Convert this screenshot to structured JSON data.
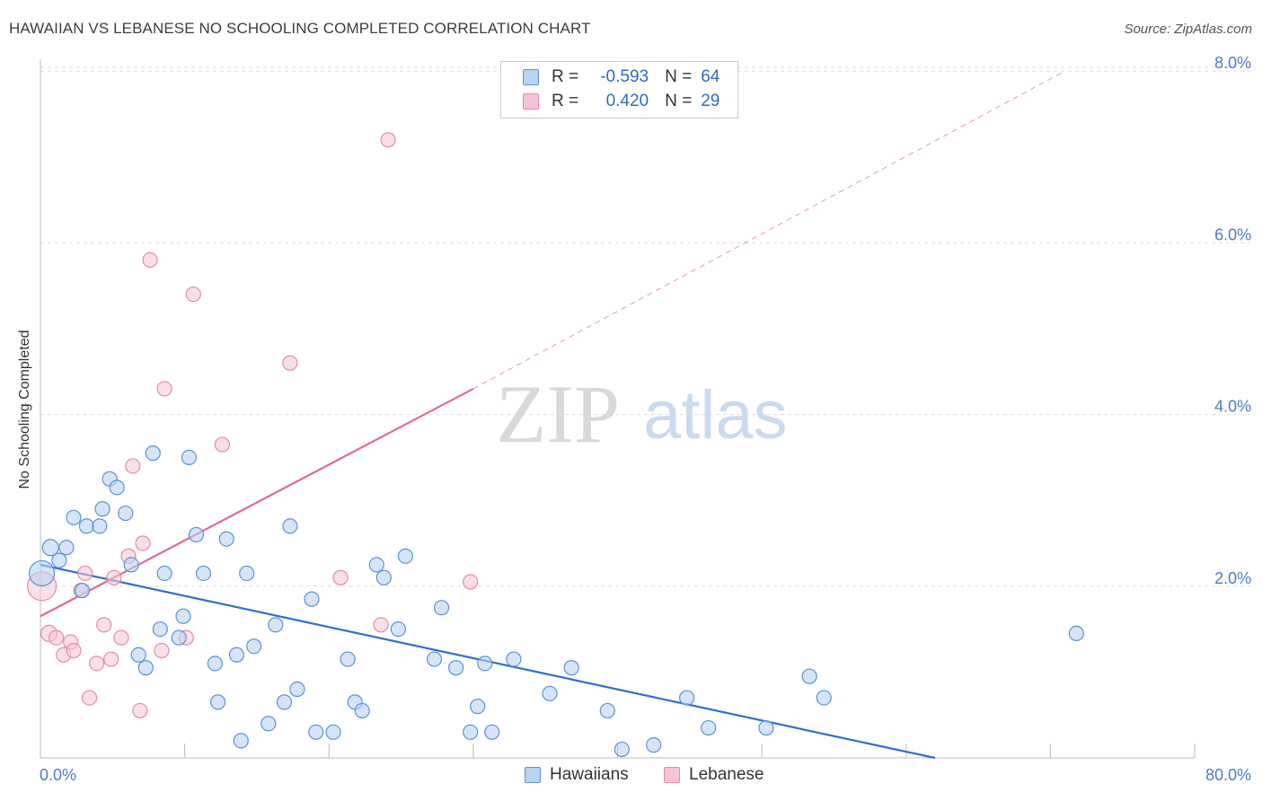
{
  "title": "HAWAIIAN VS LEBANESE NO SCHOOLING COMPLETED CORRELATION CHART",
  "source": "Source: ZipAtlas.com",
  "watermark": {
    "zip": "ZIP",
    "atlas": "atlas"
  },
  "colors": {
    "blue_fill": "#b9d3f2",
    "blue_stroke": "#5b92d6",
    "blue_line": "#2e6fcf",
    "pink_fill": "#f7c4d4",
    "pink_stroke": "#e58aa8",
    "pink_line": "#e06a93",
    "grid": "#dddddd",
    "tick_text": "#4a7cc7"
  },
  "legend": {
    "rows": [
      {
        "r_label": "R =",
        "r_value": "-0.593",
        "n_label": "N =",
        "n_value": "64"
      },
      {
        "r_label": "R =",
        "r_value": "0.420",
        "n_label": "N =",
        "n_value": "29"
      }
    ]
  },
  "bottom_legend": {
    "hawaiians": "Hawaiians",
    "lebanese": "Lebanese"
  },
  "chart_data": {
    "type": "scatter",
    "title": "HAWAIIAN VS LEBANESE NO SCHOOLING COMPLETED CORRELATION CHART",
    "xlabel": "",
    "ylabel": "No Schooling Completed",
    "xlim": [
      0,
      80
    ],
    "ylim": [
      0,
      8.5
    ],
    "x_tick_labels": [
      "0.0%",
      "80.0%"
    ],
    "y_ticks": [
      2,
      4,
      6,
      8
    ],
    "y_tick_labels": [
      "2.0%",
      "4.0%",
      "6.0%",
      "8.0%"
    ],
    "grid": "horizontal dashed",
    "legend_position": "top-center",
    "series": [
      {
        "name": "Hawaiians",
        "color": "#5b92d6",
        "r": -0.593,
        "n": 64,
        "trend": {
          "x": [
            0,
            62
          ],
          "y": [
            2.25,
            0
          ]
        },
        "points": [
          [
            0.1,
            2.15,
            14
          ],
          [
            0.7,
            2.45,
            9
          ],
          [
            1.3,
            2.3,
            8
          ],
          [
            1.8,
            2.45,
            8
          ],
          [
            2.3,
            2.8,
            8
          ],
          [
            2.9,
            1.95,
            8
          ],
          [
            3.2,
            2.7,
            8
          ],
          [
            4.1,
            2.7,
            8
          ],
          [
            4.3,
            2.9,
            8
          ],
          [
            4.8,
            3.25,
            8
          ],
          [
            5.3,
            3.15,
            8
          ],
          [
            5.9,
            2.85,
            8
          ],
          [
            6.3,
            2.25,
            8
          ],
          [
            6.8,
            1.2,
            8
          ],
          [
            7.3,
            1.05,
            8
          ],
          [
            7.8,
            3.55,
            8
          ],
          [
            8.3,
            1.5,
            8
          ],
          [
            8.6,
            2.15,
            8
          ],
          [
            9.6,
            1.4,
            8
          ],
          [
            9.9,
            1.65,
            8
          ],
          [
            10.3,
            3.5,
            8
          ],
          [
            10.8,
            2.6,
            8
          ],
          [
            11.3,
            2.15,
            8
          ],
          [
            12.1,
            1.1,
            8
          ],
          [
            12.3,
            0.65,
            8
          ],
          [
            12.9,
            2.55,
            8
          ],
          [
            13.6,
            1.2,
            8
          ],
          [
            13.9,
            0.2,
            8
          ],
          [
            14.3,
            2.15,
            8
          ],
          [
            14.8,
            1.3,
            8
          ],
          [
            15.8,
            0.4,
            8
          ],
          [
            16.3,
            1.55,
            8
          ],
          [
            16.9,
            0.65,
            8
          ],
          [
            17.3,
            2.7,
            8
          ],
          [
            17.8,
            0.8,
            8
          ],
          [
            18.8,
            1.85,
            8
          ],
          [
            19.1,
            0.3,
            8
          ],
          [
            20.3,
            0.3,
            8
          ],
          [
            21.3,
            1.15,
            8
          ],
          [
            21.8,
            0.65,
            8
          ],
          [
            22.3,
            0.55,
            8
          ],
          [
            23.3,
            2.25,
            8
          ],
          [
            23.8,
            2.1,
            8
          ],
          [
            24.8,
            1.5,
            8
          ],
          [
            25.3,
            2.35,
            8
          ],
          [
            27.3,
            1.15,
            8
          ],
          [
            27.8,
            1.75,
            8
          ],
          [
            28.8,
            1.05,
            8
          ],
          [
            29.8,
            0.3,
            8
          ],
          [
            30.3,
            0.6,
            8
          ],
          [
            30.8,
            1.1,
            8
          ],
          [
            31.3,
            0.3,
            8
          ],
          [
            32.8,
            1.15,
            8
          ],
          [
            35.3,
            0.75,
            8
          ],
          [
            36.8,
            1.05,
            8
          ],
          [
            39.3,
            0.55,
            8
          ],
          [
            40.3,
            0.1,
            8
          ],
          [
            42.5,
            0.15,
            8
          ],
          [
            44.8,
            0.7,
            8
          ],
          [
            46.3,
            0.35,
            8
          ],
          [
            50.3,
            0.35,
            8
          ],
          [
            53.3,
            0.95,
            8
          ],
          [
            54.3,
            0.7,
            8
          ],
          [
            71.8,
            1.45,
            8
          ]
        ]
      },
      {
        "name": "Lebanese",
        "color": "#e58aa8",
        "r": 0.42,
        "n": 29,
        "trend": {
          "x": [
            0,
            30
          ],
          "y": [
            1.65,
            4.3
          ]
        },
        "trend_extension": {
          "x": [
            30,
            71
          ],
          "y": [
            4.3,
            8.0
          ]
        },
        "points": [
          [
            0.1,
            2.0,
            16
          ],
          [
            0.6,
            1.45,
            9
          ],
          [
            1.1,
            1.4,
            8
          ],
          [
            1.6,
            1.2,
            8
          ],
          [
            2.1,
            1.35,
            8
          ],
          [
            2.3,
            1.25,
            8
          ],
          [
            2.8,
            1.95,
            8
          ],
          [
            3.1,
            2.15,
            8
          ],
          [
            3.9,
            1.1,
            8
          ],
          [
            4.4,
            1.55,
            8
          ],
          [
            4.9,
            1.15,
            8
          ],
          [
            5.1,
            2.1,
            8
          ],
          [
            5.6,
            1.4,
            8
          ],
          [
            6.1,
            2.35,
            8
          ],
          [
            6.4,
            3.4,
            8
          ],
          [
            6.9,
            0.55,
            8
          ],
          [
            7.1,
            2.5,
            8
          ],
          [
            7.6,
            5.8,
            8
          ],
          [
            8.4,
            1.25,
            8
          ],
          [
            8.6,
            4.3,
            8
          ],
          [
            10.1,
            1.4,
            8
          ],
          [
            10.6,
            5.4,
            8
          ],
          [
            12.6,
            3.65,
            8
          ],
          [
            17.3,
            4.6,
            8
          ],
          [
            20.8,
            2.1,
            8
          ],
          [
            23.6,
            1.55,
            8
          ],
          [
            24.1,
            7.2,
            8
          ],
          [
            29.8,
            2.05,
            8
          ],
          [
            3.4,
            0.7,
            8
          ]
        ]
      }
    ]
  }
}
